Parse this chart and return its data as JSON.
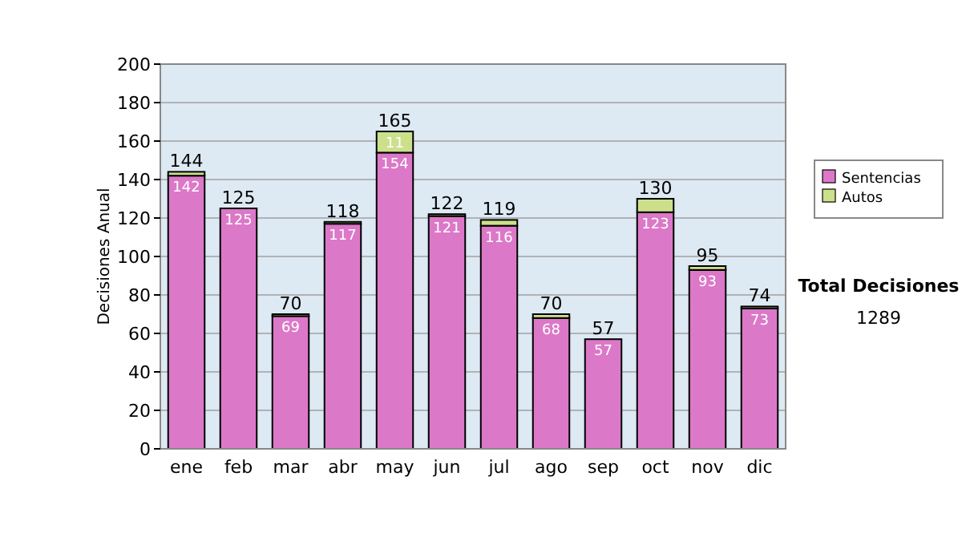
{
  "chart_data": {
    "type": "bar",
    "stacked": true,
    "ylabel": "Decisiones Anual",
    "categories": [
      "ene",
      "feb",
      "mar",
      "abr",
      "may",
      "jun",
      "jul",
      "ago",
      "sep",
      "oct",
      "nov",
      "dic"
    ],
    "series": [
      {
        "name": "Sentencias",
        "color": "#dc78c8",
        "values": [
          142,
          125,
          69,
          117,
          154,
          121,
          116,
          68,
          57,
          123,
          93,
          73
        ],
        "value_labels": [
          "142",
          "125",
          "69",
          "117",
          "154",
          "121",
          "116",
          "68",
          "57",
          "123",
          "93",
          "73"
        ]
      },
      {
        "name": "Autos",
        "color": "#cce08c",
        "values": [
          2,
          0,
          1,
          1,
          11,
          1,
          3,
          2,
          0,
          7,
          2,
          1
        ],
        "value_labels": [
          null,
          null,
          null,
          null,
          "11",
          null,
          null,
          null,
          null,
          null,
          null,
          null
        ]
      }
    ],
    "totals": [
      "144",
      "125",
      "70",
      "118",
      "165",
      "122",
      "119",
      "70",
      "57",
      "130",
      "95",
      "74"
    ],
    "ylim": [
      0,
      200
    ],
    "yticks": [
      0,
      20,
      40,
      60,
      80,
      100,
      120,
      140,
      160,
      180,
      200
    ],
    "grid": "y",
    "legend": "right",
    "annotations": [
      "Total Decisiones",
      "1289"
    ]
  }
}
